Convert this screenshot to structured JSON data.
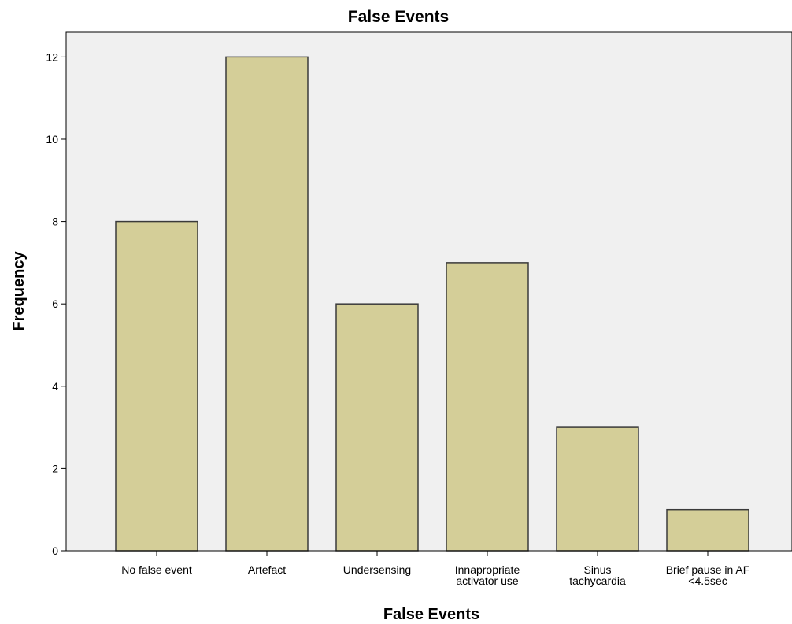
{
  "chart_data": {
    "type": "bar",
    "title": "False Events",
    "xlabel": "False Events",
    "ylabel": "Frequency",
    "categories": [
      [
        "No false event"
      ],
      [
        "Artefact"
      ],
      [
        "Undersensing"
      ],
      [
        "Innapropriate",
        "activator use"
      ],
      [
        "Sinus",
        "tachycardia"
      ],
      [
        "Brief pause in AF",
        "<4.5sec"
      ]
    ],
    "values": [
      8,
      12,
      6,
      7,
      3,
      1
    ],
    "ylim": [
      0,
      12.6
    ],
    "yticks": [
      0,
      2,
      4,
      6,
      8,
      10,
      12
    ],
    "grid": false,
    "colors": {
      "bar_fill": "#d4ce98",
      "bar_stroke": "#3a3a3a",
      "plot_background": "#f0f0f0",
      "axis": "#000000"
    }
  }
}
